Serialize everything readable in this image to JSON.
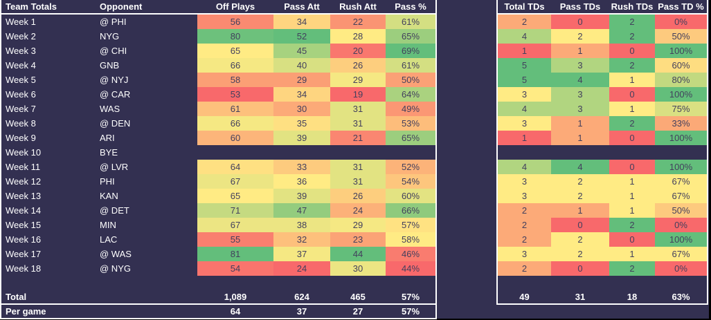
{
  "colors": {
    "background": "#000000",
    "surface": "#333051",
    "border": "#ffffff",
    "header_text": "#ffffff",
    "cell_text": "#423f5d",
    "scale_min": "#f8696b",
    "scale_mid": "#ffeb84",
    "scale_max": "#63be7b"
  },
  "left_table": {
    "headers": [
      "Team Totals",
      "Opponent",
      "Off Plays",
      "Pass Att",
      "Rush Att",
      "Pass %"
    ],
    "heat_columns": [
      "off_plays",
      "pass_att",
      "rush_att",
      "pass_pct"
    ],
    "rows": [
      {
        "week": "Week 1",
        "opponent": "@ PHI",
        "off_plays": 56,
        "pass_att": 34,
        "rush_att": 22,
        "pass_pct": "61%"
      },
      {
        "week": "Week 2",
        "opponent": "NYG",
        "off_plays": 80,
        "pass_att": 52,
        "rush_att": 28,
        "pass_pct": "65%"
      },
      {
        "week": "Week 3",
        "opponent": "@ CHI",
        "off_plays": 65,
        "pass_att": 45,
        "rush_att": 20,
        "pass_pct": "69%"
      },
      {
        "week": "Week 4",
        "opponent": "GNB",
        "off_plays": 66,
        "pass_att": 40,
        "rush_att": 26,
        "pass_pct": "61%"
      },
      {
        "week": "Week 5",
        "opponent": "@ NYJ",
        "off_plays": 58,
        "pass_att": 29,
        "rush_att": 29,
        "pass_pct": "50%"
      },
      {
        "week": "Week 6",
        "opponent": "@ CAR",
        "off_plays": 53,
        "pass_att": 34,
        "rush_att": 19,
        "pass_pct": "64%"
      },
      {
        "week": "Week 7",
        "opponent": "WAS",
        "off_plays": 61,
        "pass_att": 30,
        "rush_att": 31,
        "pass_pct": "49%"
      },
      {
        "week": "Week 8",
        "opponent": "@ DEN",
        "off_plays": 66,
        "pass_att": 35,
        "rush_att": 31,
        "pass_pct": "53%"
      },
      {
        "week": "Week 9",
        "opponent": "ARI",
        "off_plays": 60,
        "pass_att": 39,
        "rush_att": 21,
        "pass_pct": "65%"
      },
      {
        "week": "Week 10",
        "opponent": "BYE",
        "off_plays": null,
        "pass_att": null,
        "rush_att": null,
        "pass_pct": null
      },
      {
        "week": "Week 11",
        "opponent": "@ LVR",
        "off_plays": 64,
        "pass_att": 33,
        "rush_att": 31,
        "pass_pct": "52%"
      },
      {
        "week": "Week 12",
        "opponent": "PHI",
        "off_plays": 67,
        "pass_att": 36,
        "rush_att": 31,
        "pass_pct": "54%"
      },
      {
        "week": "Week 13",
        "opponent": "KAN",
        "off_plays": 65,
        "pass_att": 39,
        "rush_att": 26,
        "pass_pct": "60%"
      },
      {
        "week": "Week 14",
        "opponent": "@ DET",
        "off_plays": 71,
        "pass_att": 47,
        "rush_att": 24,
        "pass_pct": "66%"
      },
      {
        "week": "Week 15",
        "opponent": "MIN",
        "off_plays": 67,
        "pass_att": 38,
        "rush_att": 29,
        "pass_pct": "57%"
      },
      {
        "week": "Week 16",
        "opponent": "LAC",
        "off_plays": 55,
        "pass_att": 32,
        "rush_att": 23,
        "pass_pct": "58%"
      },
      {
        "week": "Week 17",
        "opponent": "@ WAS",
        "off_plays": 81,
        "pass_att": 37,
        "rush_att": 44,
        "pass_pct": "46%"
      },
      {
        "week": "Week 18",
        "opponent": "@ NYG",
        "off_plays": 54,
        "pass_att": 24,
        "rush_att": 30,
        "pass_pct": "44%"
      }
    ],
    "total": {
      "label": "Total",
      "off_plays": "1,089",
      "pass_att": "624",
      "rush_att": "465",
      "pass_pct": "57%"
    },
    "per_game": {
      "label": "Per game",
      "off_plays": "64",
      "pass_att": "37",
      "rush_att": "27",
      "pass_pct": "57%"
    }
  },
  "right_table": {
    "headers": [
      "Total TDs",
      "Pass TDs",
      "Rush TDs",
      "Pass TD %"
    ],
    "heat_columns": [
      "total_tds",
      "pass_tds",
      "rush_tds",
      "pass_td_pct"
    ],
    "rows": [
      {
        "total_tds": 2,
        "pass_tds": 0,
        "rush_tds": 2,
        "pass_td_pct": "0%"
      },
      {
        "total_tds": 4,
        "pass_tds": 2,
        "rush_tds": 2,
        "pass_td_pct": "50%"
      },
      {
        "total_tds": 1,
        "pass_tds": 1,
        "rush_tds": 0,
        "pass_td_pct": "100%"
      },
      {
        "total_tds": 5,
        "pass_tds": 3,
        "rush_tds": 2,
        "pass_td_pct": "60%"
      },
      {
        "total_tds": 5,
        "pass_tds": 4,
        "rush_tds": 1,
        "pass_td_pct": "80%"
      },
      {
        "total_tds": 3,
        "pass_tds": 3,
        "rush_tds": 0,
        "pass_td_pct": "100%"
      },
      {
        "total_tds": 4,
        "pass_tds": 3,
        "rush_tds": 1,
        "pass_td_pct": "75%"
      },
      {
        "total_tds": 3,
        "pass_tds": 1,
        "rush_tds": 2,
        "pass_td_pct": "33%"
      },
      {
        "total_tds": 1,
        "pass_tds": 1,
        "rush_tds": 0,
        "pass_td_pct": "100%"
      },
      {
        "total_tds": null,
        "pass_tds": null,
        "rush_tds": null,
        "pass_td_pct": null
      },
      {
        "total_tds": 4,
        "pass_tds": 4,
        "rush_tds": 0,
        "pass_td_pct": "100%"
      },
      {
        "total_tds": 3,
        "pass_tds": 2,
        "rush_tds": 1,
        "pass_td_pct": "67%"
      },
      {
        "total_tds": 3,
        "pass_tds": 2,
        "rush_tds": 1,
        "pass_td_pct": "67%"
      },
      {
        "total_tds": 2,
        "pass_tds": 1,
        "rush_tds": 1,
        "pass_td_pct": "50%"
      },
      {
        "total_tds": 2,
        "pass_tds": 0,
        "rush_tds": 2,
        "pass_td_pct": "0%"
      },
      {
        "total_tds": 2,
        "pass_tds": 2,
        "rush_tds": 0,
        "pass_td_pct": "100%"
      },
      {
        "total_tds": 3,
        "pass_tds": 2,
        "rush_tds": 1,
        "pass_td_pct": "67%"
      },
      {
        "total_tds": 2,
        "pass_tds": 0,
        "rush_tds": 2,
        "pass_td_pct": "0%"
      }
    ],
    "total": {
      "total_tds": "49",
      "pass_tds": "31",
      "rush_tds": "18",
      "pass_td_pct": "63%"
    }
  }
}
